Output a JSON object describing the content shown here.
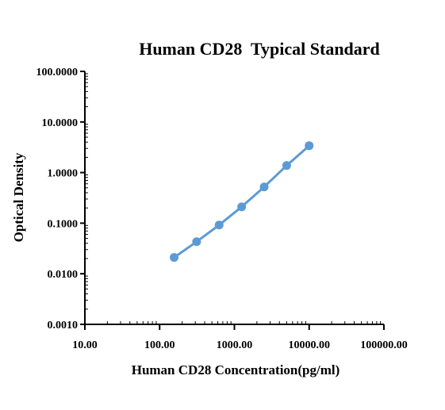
{
  "chart_data": {
    "type": "line",
    "title": "Human CD28  Typical Standard",
    "xlabel": "Human CD28 Concentration(pg/ml)",
    "ylabel": "Optical Density",
    "x_scale": "log",
    "y_scale": "log",
    "xlim": [
      10,
      100000
    ],
    "ylim": [
      0.001,
      100
    ],
    "x_tick_values": [
      10,
      100,
      1000,
      10000,
      100000
    ],
    "x_tick_labels": [
      "10.00",
      "100.00",
      "1000.00",
      "10000.00",
      "100000.00"
    ],
    "y_tick_values": [
      0.001,
      0.01,
      0.1,
      1,
      10,
      100
    ],
    "y_tick_labels": [
      "0.0010",
      "0.0100",
      "0.1000",
      "1.0000",
      "10.0000",
      "100.0000"
    ],
    "grid": false,
    "legend": "none",
    "series_color": "#5b9bd5",
    "series": [
      {
        "x": [
          156.25,
          312.5,
          625,
          1250,
          2500,
          5000,
          10000
        ],
        "y": [
          0.021,
          0.043,
          0.092,
          0.21,
          0.52,
          1.38,
          3.4
        ]
      }
    ]
  }
}
